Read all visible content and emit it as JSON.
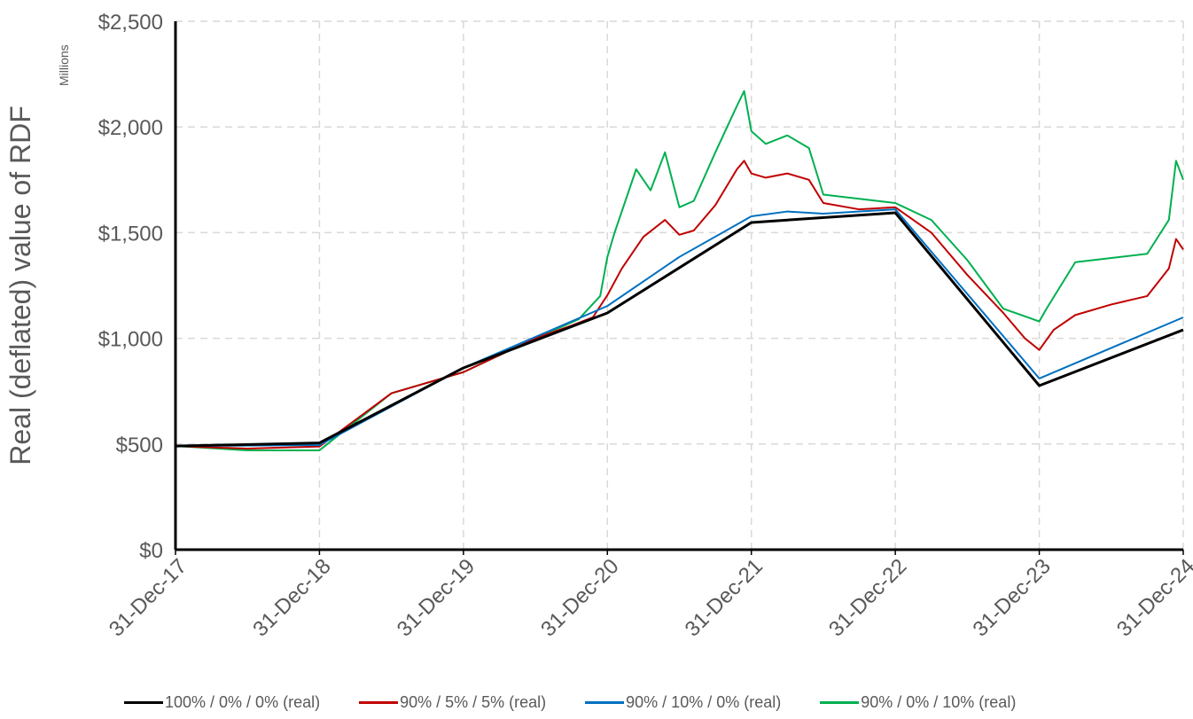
{
  "chart_data": {
    "type": "line",
    "ylabel": "Real (deflated) value of RDF",
    "yunit_label": "Millions",
    "ylim": [
      0,
      2500
    ],
    "yticks": [
      0,
      500,
      1000,
      1500,
      2000,
      2500
    ],
    "ytick_labels": [
      "$0",
      "$500",
      "$1,000",
      "$1,500",
      "$2,000",
      "$2,500"
    ],
    "xlim": [
      0,
      7
    ],
    "xticks": [
      0,
      1,
      2,
      3,
      4,
      5,
      6,
      7
    ],
    "xtick_labels": [
      "31-Dec-17",
      "31-Dec-18",
      "31-Dec-19",
      "31-Dec-20",
      "31-Dec-21",
      "31-Dec-22",
      "31-Dec-23",
      "31-Dec-24"
    ],
    "x_units": "years since 31-Dec-17",
    "grid": true,
    "legend_position": "bottom",
    "series": [
      {
        "name": "100% / 0% / 0% (real)",
        "color": "#000000",
        "x": [
          0,
          1,
          2,
          3,
          4,
          5,
          6,
          7
        ],
        "y": [
          490,
          505,
          860,
          1120,
          1548,
          1594,
          776,
          1040
        ]
      },
      {
        "name": "90% / 5% / 5% (real)",
        "color": "#C00000",
        "x": [
          0,
          0.5,
          1,
          1.5,
          2,
          2.5,
          2.75,
          2.9,
          3.0,
          3.1,
          3.25,
          3.4,
          3.5,
          3.6,
          3.75,
          3.9,
          3.95,
          4.0,
          4.1,
          4.25,
          4.4,
          4.5,
          4.75,
          5.0,
          5.25,
          5.5,
          5.75,
          5.9,
          6.0,
          6.1,
          6.25,
          6.5,
          6.75,
          6.9,
          6.95,
          7.0
        ],
        "y": [
          490,
          478,
          488,
          740,
          840,
          1000,
          1060,
          1100,
          1204,
          1330,
          1480,
          1560,
          1490,
          1510,
          1630,
          1800,
          1840,
          1780,
          1760,
          1780,
          1750,
          1640,
          1610,
          1620,
          1500,
          1300,
          1120,
          1000,
          945,
          1040,
          1110,
          1160,
          1200,
          1330,
          1470,
          1420
        ]
      },
      {
        "name": "90% / 10% / 0% (real)",
        "color": "#0070C0",
        "x": [
          0,
          1,
          2,
          3,
          3.5,
          4,
          4.25,
          4.5,
          5,
          6,
          7
        ],
        "y": [
          490,
          495,
          860,
          1153,
          1385,
          1577,
          1600,
          1590,
          1610,
          810,
          1099
        ]
      },
      {
        "name": "90% / 0% / 10% (real)",
        "color": "#00B050",
        "x": [
          0,
          0.5,
          1,
          1.5,
          2,
          2.5,
          2.8,
          2.95,
          3.0,
          3.05,
          3.2,
          3.3,
          3.4,
          3.5,
          3.6,
          3.75,
          3.9,
          3.95,
          4.0,
          4.1,
          4.25,
          4.4,
          4.5,
          4.75,
          5.0,
          5.25,
          5.5,
          5.75,
          6.0,
          6.05,
          6.25,
          6.5,
          6.75,
          6.9,
          6.95,
          7.0
        ],
        "y": [
          490,
          470,
          470,
          740,
          840,
          1000,
          1090,
          1200,
          1385,
          1500,
          1800,
          1700,
          1880,
          1620,
          1650,
          1880,
          2100,
          2170,
          1980,
          1920,
          1960,
          1900,
          1680,
          1660,
          1640,
          1560,
          1370,
          1140,
          1080,
          1140,
          1360,
          1380,
          1400,
          1560,
          1840,
          1750
        ]
      }
    ]
  }
}
